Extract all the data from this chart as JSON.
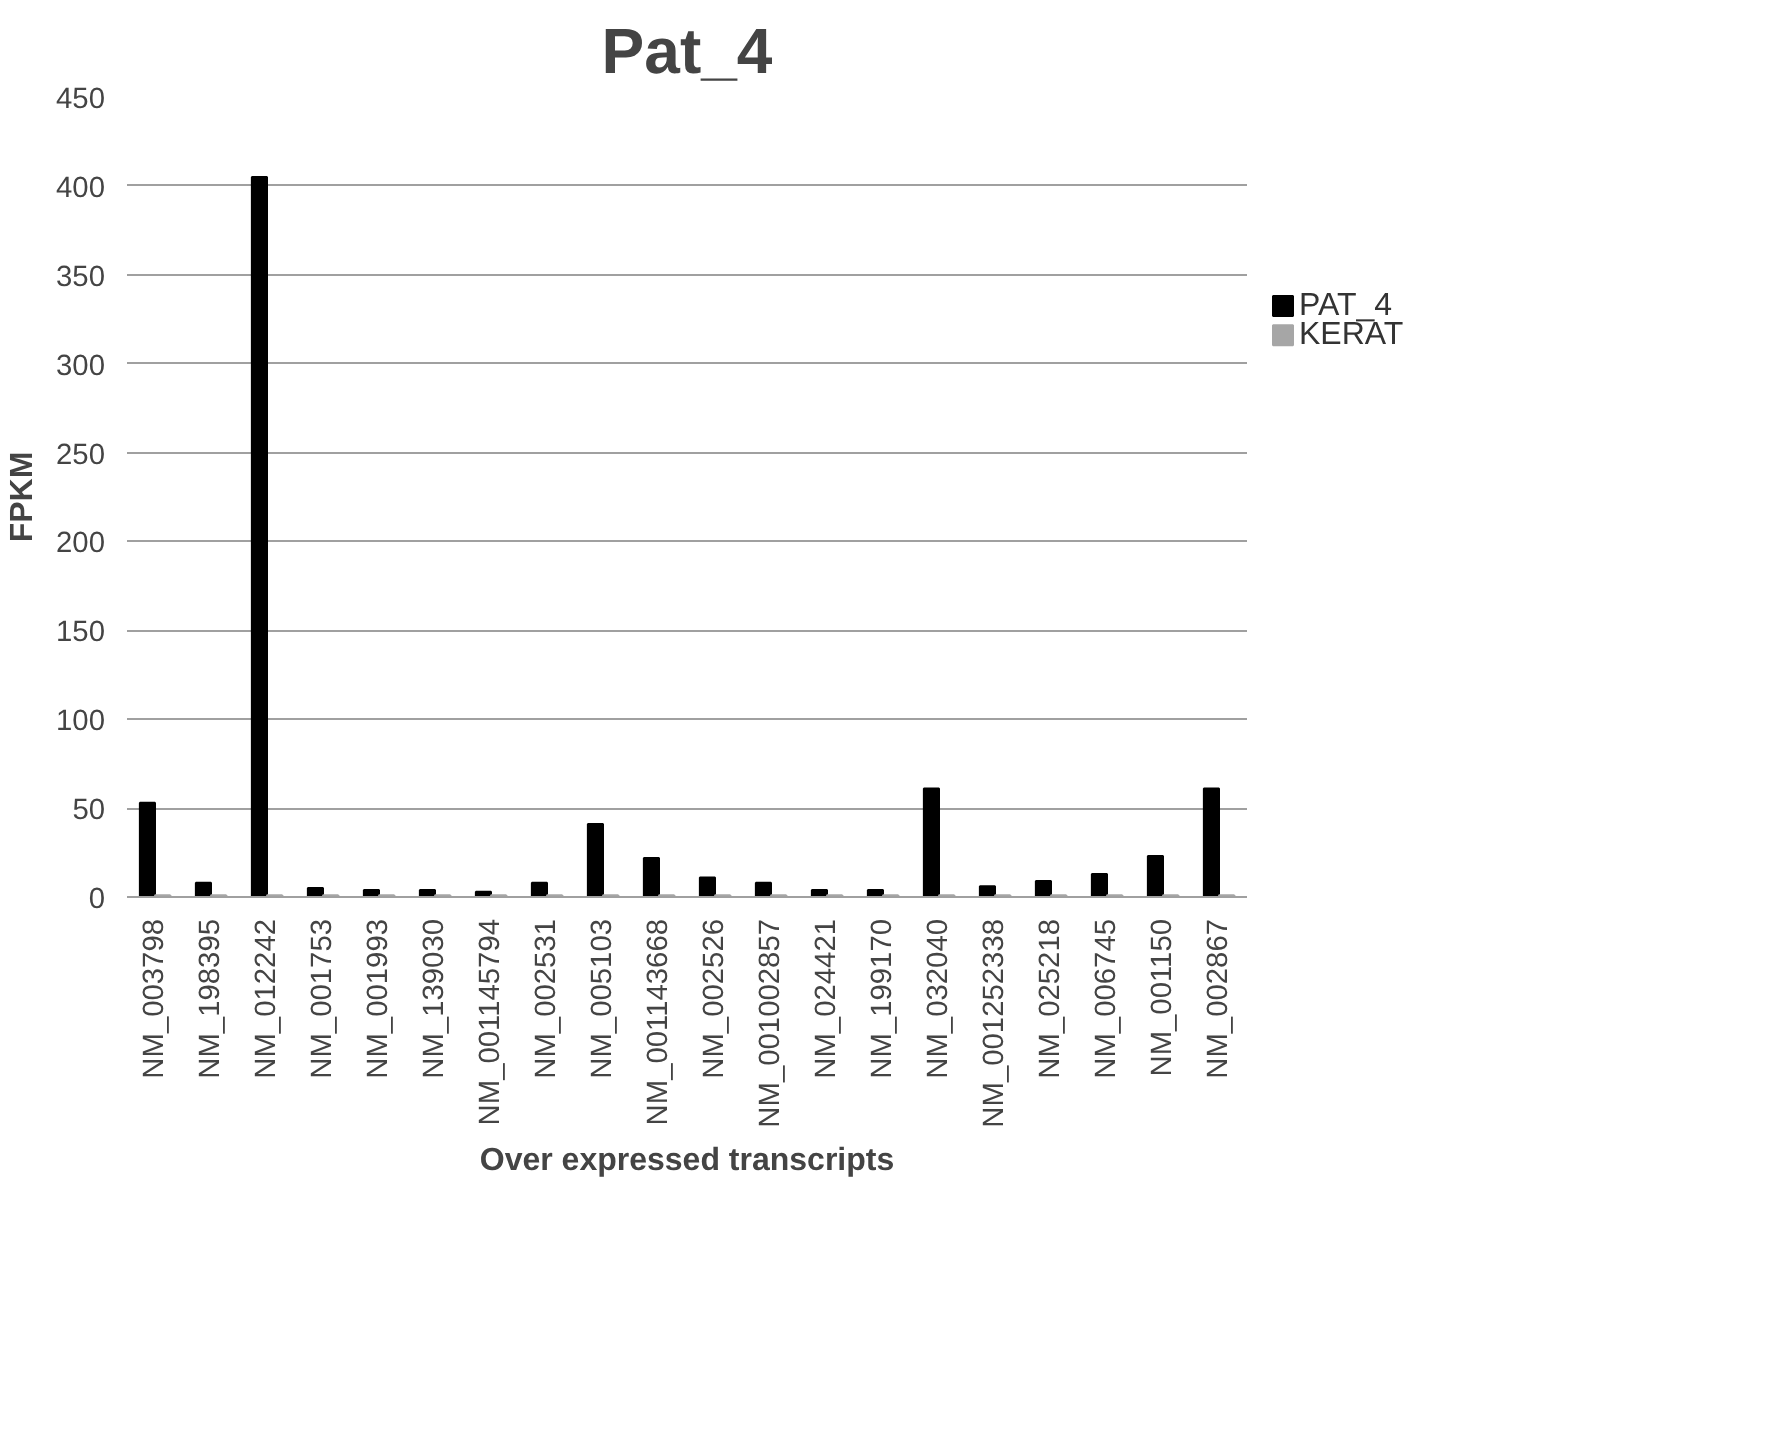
{
  "chart_data": {
    "type": "bar",
    "title": "Pat_4",
    "xlabel": "Over expressed transcripts",
    "ylabel": "FPKM",
    "categories": [
      "NM_003798",
      "NM_198395",
      "NM_012242",
      "NM_001753",
      "NM_001993",
      "NM_139030",
      "NM_001145794",
      "NM_002531",
      "NM_005103",
      "NM_001143668",
      "NM_002526",
      "NM_001002857",
      "NM_024421",
      "NM_199170",
      "NM_032040",
      "NM_001252338",
      "NM_025218",
      "NM_006745",
      "NM_001150",
      "NM_002867"
    ],
    "series": [
      {
        "name": "PAT_4",
        "color": "#000000",
        "values": [
          53,
          8,
          405,
          5,
          4,
          4,
          3,
          8,
          41,
          22,
          11,
          8,
          4,
          4,
          61,
          6,
          9,
          13,
          23,
          61
        ]
      },
      {
        "name": "KERAT",
        "color": "#a6a6a6",
        "values": [
          1,
          1,
          1,
          1,
          1,
          1,
          1,
          1,
          1,
          1,
          1,
          1,
          1,
          1,
          1,
          1,
          1,
          1,
          1,
          1
        ]
      }
    ],
    "ylim": [
      0,
      450
    ],
    "yticks": [
      0,
      50,
      100,
      150,
      200,
      250,
      300,
      350,
      400,
      450
    ],
    "grid": "y",
    "legend": "right"
  }
}
